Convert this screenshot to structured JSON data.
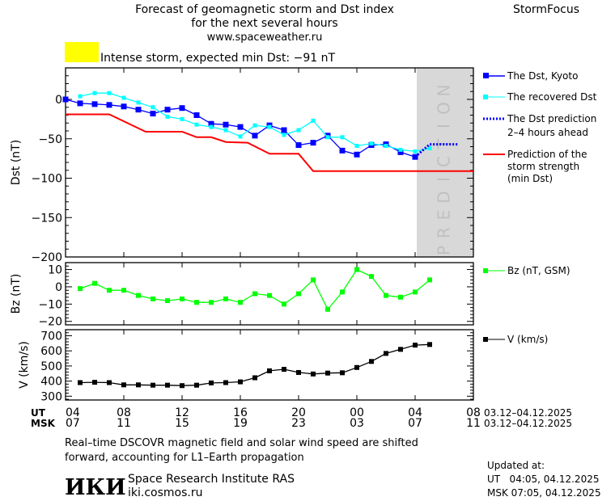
{
  "header": {
    "title_line1": "Forecast of geomagnetic storm and Dst index",
    "title_line2": "for the next several hours",
    "site": "www.spaceweather.ru",
    "brand": "StormFocus",
    "storm_status": "Intense storm, expected min Dst: −91 nT",
    "storm_color": "#ffff00"
  },
  "prediction_label": "PREDICTION",
  "legend": {
    "dst_kyoto": "The Dst, Kyoto",
    "recovered": "The recovered Dst",
    "prediction_1": "The Dst prediction",
    "prediction_2": "2–4 hours ahead",
    "strength_1": "Prediction of the",
    "strength_2": "storm strength",
    "strength_3": "(min Dst)",
    "bz": "Bz (nT, GSM)",
    "v": "V (km/s)"
  },
  "axis": {
    "ut_label": "UT",
    "msk_label": "MSK",
    "ut_ticks": [
      "04",
      "08",
      "12",
      "16",
      "20",
      "00",
      "04",
      "08"
    ],
    "msk_ticks": [
      "07",
      "11",
      "15",
      "19",
      "23",
      "03",
      "07",
      "11"
    ],
    "ut_range": "03.12–04.12.2025",
    "msk_range": "03.12–04.12.2025"
  },
  "footer": {
    "note_line1": "Real–time DSCOVR magnetic field and solar wind speed are shifted",
    "note_line2": "forward, accounting for L1–Earth propagation",
    "logo": "ИКИ",
    "institute": "Space Research Institute RAS",
    "institute_site": "iki.cosmos.ru",
    "updated_label": "Updated at:",
    "updated_ut": "UT   04:05, 04.12.2025",
    "updated_msk": "MSK 07:05, 04.12.2025"
  },
  "chart_data": [
    {
      "type": "line",
      "ylabel": "Dst (nT)",
      "ylim": [
        -200,
        40
      ],
      "yticks": [
        "0",
        "−50",
        "−100",
        "−150",
        "−200"
      ],
      "x_unit": "hours since 03.12.2025 04:00 UT",
      "xlim": [
        0,
        28
      ],
      "prediction_region": [
        24,
        28
      ],
      "series": [
        {
          "name": "The Dst, Kyoto",
          "color": "#0000ff",
          "x": [
            0,
            1,
            2,
            3,
            4,
            5,
            6,
            7,
            8,
            9,
            10,
            11,
            12,
            13,
            14,
            15,
            16,
            17,
            18,
            19,
            20,
            21,
            22,
            23,
            24
          ],
          "values": [
            0,
            -5,
            -6,
            -7,
            -9,
            -13,
            -18,
            -13,
            -11,
            -20,
            -31,
            -32,
            -35,
            -46,
            -33,
            -39,
            -58,
            -55,
            -46,
            -65,
            -70,
            -58,
            -57,
            -67,
            -73
          ]
        },
        {
          "name": "The recovered Dst",
          "color": "#00ffff",
          "x": [
            1,
            2,
            3,
            4,
            5,
            6,
            7,
            8,
            9,
            10,
            11,
            12,
            13,
            14,
            15,
            16,
            17,
            18,
            19,
            20,
            21,
            22,
            23,
            24,
            25
          ],
          "values": [
            4,
            8,
            8,
            2,
            -4,
            -10,
            -22,
            -25,
            -32,
            -35,
            -39,
            -47,
            -33,
            -35,
            -45,
            -39,
            -27,
            -48,
            -48,
            -59,
            -56,
            -59,
            -64,
            -66,
            -62
          ]
        },
        {
          "name": "The Dst prediction 2–4 hours ahead",
          "color": "#0000ff",
          "style": "dotted",
          "x": [
            24,
            25,
            26,
            27
          ],
          "values": [
            -73,
            -57,
            -57,
            -57
          ]
        },
        {
          "name": "Prediction of the storm strength (min Dst)",
          "color": "#ff0000",
          "style": "step",
          "x": [
            0,
            3,
            5.5,
            8,
            9,
            10,
            11,
            12.5,
            14,
            16,
            17,
            28
          ],
          "values": [
            -19,
            -19,
            -41,
            -41,
            -48,
            -48,
            -54,
            -55,
            -69,
            -69,
            -91,
            -91
          ]
        }
      ]
    },
    {
      "type": "line",
      "ylabel": "Bz (nT)",
      "ylim": [
        -22,
        14
      ],
      "yticks": [
        "10",
        "0",
        "−10",
        "−20"
      ],
      "series": [
        {
          "name": "Bz (nT, GSM)",
          "color": "#00ff00",
          "x": [
            1,
            2,
            3,
            4,
            5,
            6,
            7,
            8,
            9,
            10,
            11,
            12,
            13,
            14,
            15,
            16,
            17,
            18,
            19,
            20,
            21,
            22,
            23,
            24,
            25
          ],
          "values": [
            -1,
            2,
            -2,
            -2,
            -5,
            -7,
            -8,
            -7,
            -9,
            -9,
            -7,
            -9,
            -4,
            -5,
            -10,
            -4,
            4,
            -13,
            -3,
            10,
            6,
            -5,
            -6,
            -3,
            4
          ]
        }
      ]
    },
    {
      "type": "line",
      "ylabel": "V (km/s)",
      "ylim": [
        275,
        740
      ],
      "yticks": [
        "700",
        "600",
        "500",
        "400",
        "300"
      ],
      "series": [
        {
          "name": "V (km/s)",
          "color": "#000000",
          "x": [
            1,
            2,
            3,
            4,
            5,
            6,
            7,
            8,
            9,
            10,
            11,
            12,
            13,
            14,
            15,
            16,
            17,
            18,
            19,
            20,
            21,
            22,
            23,
            24,
            25
          ],
          "values": [
            390,
            392,
            390,
            375,
            375,
            373,
            373,
            370,
            373,
            388,
            390,
            395,
            422,
            468,
            478,
            457,
            447,
            453,
            455,
            490,
            530,
            583,
            610,
            638,
            642
          ]
        }
      ]
    }
  ]
}
